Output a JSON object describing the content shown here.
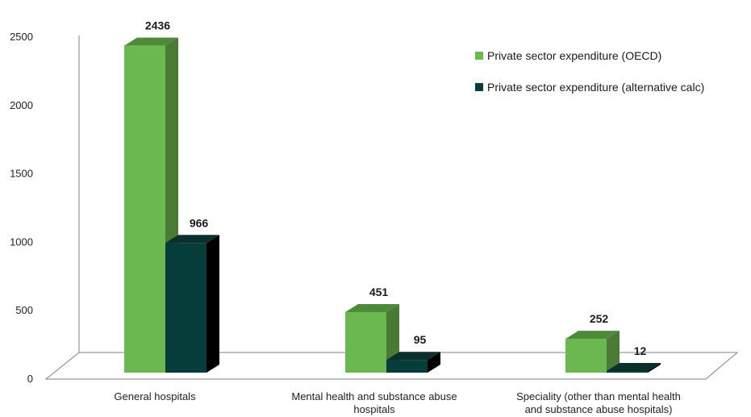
{
  "chart_data": {
    "type": "bar",
    "categories": [
      [
        "General hospitals"
      ],
      [
        "Mental health and substance abuse",
        "hospitals"
      ],
      [
        "Speciality (other than mental health",
        "and substance abuse hospitals)"
      ]
    ],
    "series": [
      {
        "name": "Private sector expenditure (OECD)",
        "values": [
          2436,
          451,
          252
        ],
        "color": "#6ab84f",
        "side_color": "#4a7a34",
        "top_color": "#4f8a3a"
      },
      {
        "name": "Private sector expenditure (alternative calc)",
        "values": [
          966,
          95,
          12
        ],
        "color": "#063c3a",
        "side_color": "#000000",
        "top_color": "#0a2f2d"
      }
    ],
    "yticks": [
      0,
      500,
      1000,
      1500,
      2000,
      2500
    ],
    "ylim": [
      0,
      2500
    ],
    "legend_position": "top-right",
    "grid": false
  }
}
